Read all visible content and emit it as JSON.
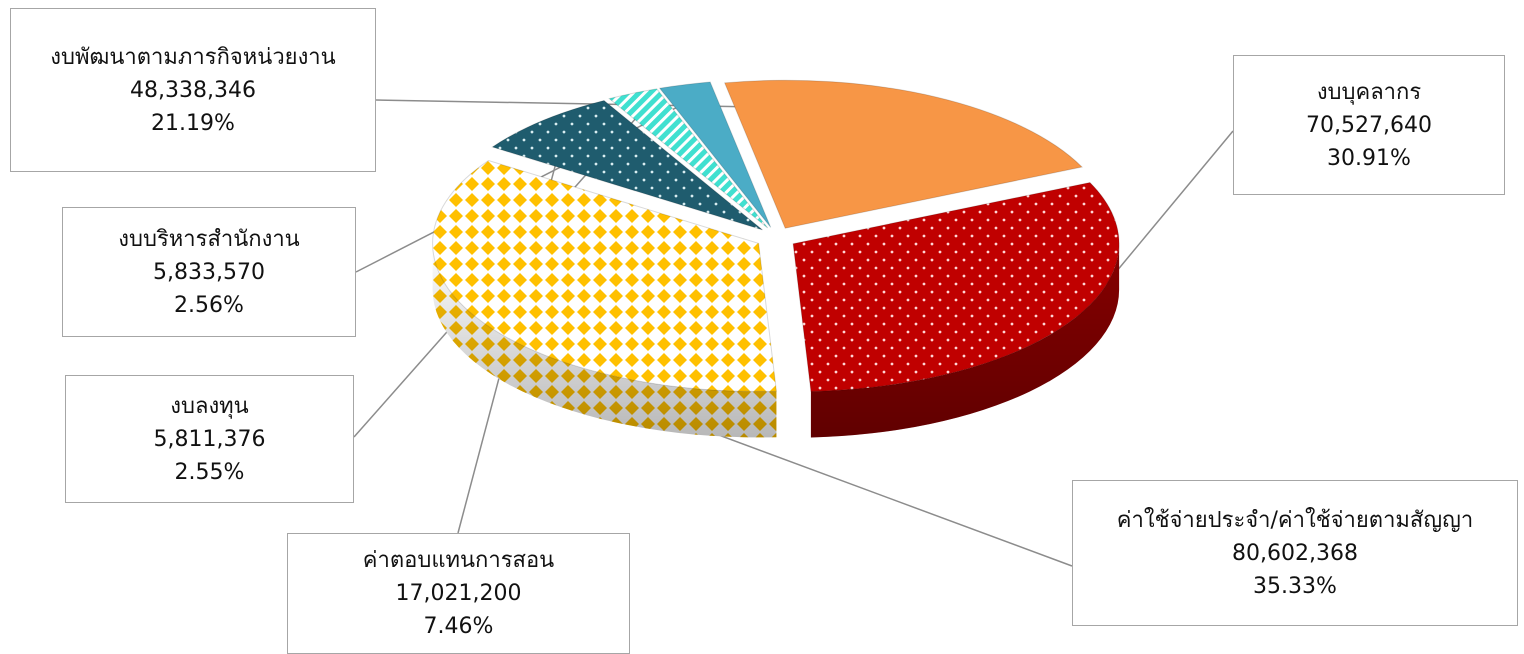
{
  "chart_data": {
    "type": "pie",
    "title": "",
    "slices": [
      {
        "label": "งบบุคลากร",
        "value": 70527640,
        "value_text": "70,527,640",
        "percent": "30.91%",
        "color": "#c00000",
        "pattern": "dots"
      },
      {
        "label": "ค่าใช้จ่ายประจำ/ค่าใช้จ่ายตามสัญญา",
        "value": 80602368,
        "value_text": "80,602,368",
        "percent": "35.33%",
        "color": "#ffc000",
        "pattern": "diamonds"
      },
      {
        "label": "ค่าตอบแทนการสอน",
        "value": 17021200,
        "value_text": "17,021,200",
        "percent": "7.46%",
        "color": "#1f5c6e",
        "pattern": "dots"
      },
      {
        "label": "งบลงทุน",
        "value": 5811376,
        "value_text": "5,811,376",
        "percent": "2.55%",
        "color": "#40e0d0",
        "pattern": "stripes"
      },
      {
        "label": "งบบริหารสำนักงาน",
        "value": 5833570,
        "value_text": "5,833,570",
        "percent": "2.56%",
        "color": "#4bacc6",
        "pattern": "solid"
      },
      {
        "label": "งบพัฒนาตามภารกิจหน่วยงาน",
        "value": 48338346,
        "value_text": "48,338,346",
        "percent": "21.19%",
        "color": "#f79646",
        "pattern": "solid"
      }
    ],
    "legend": "none",
    "exploded": true,
    "style": "3d"
  }
}
